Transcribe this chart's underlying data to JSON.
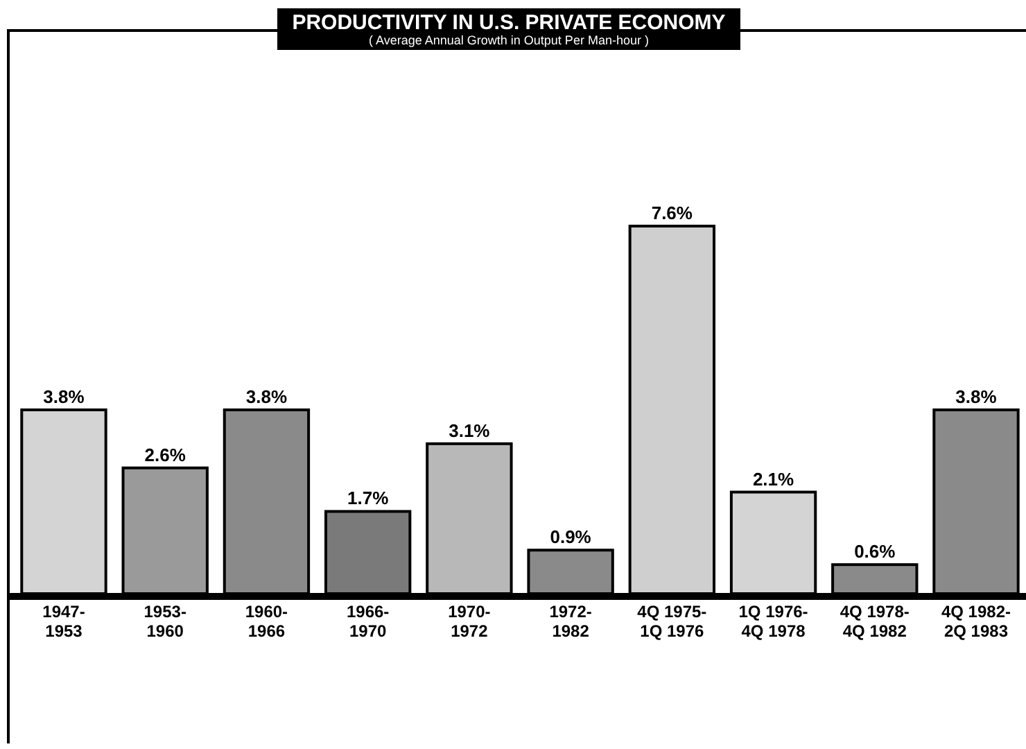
{
  "chart_data": {
    "type": "bar",
    "title": "PRODUCTIVITY IN U.S. PRIVATE ECONOMY",
    "subtitle": "( Average Annual Growth in Output Per Man-hour )",
    "categories": [
      "1947-\n1953",
      "1953-\n1960",
      "1960-\n1966",
      "1966-\n1970",
      "1970-\n1972",
      "1972-\n1982",
      "4Q 1975-\n1Q 1976",
      "1Q 1976-\n4Q 1978",
      "4Q 1978-\n4Q 1982",
      "4Q 1982-\n2Q 1983"
    ],
    "values": [
      3.8,
      2.6,
      3.8,
      1.7,
      3.1,
      0.9,
      7.6,
      2.1,
      0.6,
      3.8
    ],
    "value_labels": [
      "3.8%",
      "2.6%",
      "3.8%",
      "1.7%",
      "3.1%",
      "0.9%",
      "7.6%",
      "2.1%",
      "0.6%",
      "3.8%"
    ],
    "colors": [
      "#d4d4d4",
      "#9a9a9a",
      "#8a8a8a",
      "#7a7a7a",
      "#b8b8b8",
      "#8a8a8a",
      "#cfcfcf",
      "#d4d4d4",
      "#8a8a8a",
      "#8a8a8a"
    ]
  }
}
